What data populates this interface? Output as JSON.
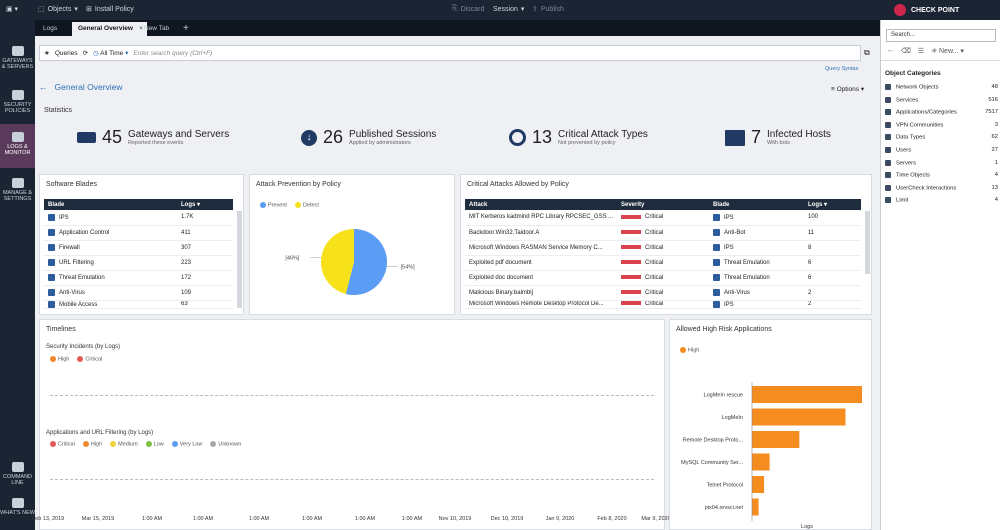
{
  "topbar": {
    "objects": "Objects",
    "install": "Install Policy",
    "discard": "Discard",
    "session": "Session",
    "publish": "Publish",
    "brand": "CHECK POINT"
  },
  "tabs": [
    {
      "label": "Logs"
    },
    {
      "label": "General Overview"
    },
    {
      "label": "New Tab"
    }
  ],
  "nav": [
    {
      "label": "GATEWAYS & SERVERS"
    },
    {
      "label": "SECURITY POLICIES"
    },
    {
      "label": "LOGS & MONITOR"
    },
    {
      "label": "MANAGE & SETTINGS"
    },
    {
      "label": "COMMAND LINE"
    },
    {
      "label": "WHAT'S NEW"
    }
  ],
  "query": {
    "label": "Queries",
    "time": "All Time",
    "placeholder": "Enter search query (Ctrl+F)",
    "syntax": "Query Syntax"
  },
  "page": {
    "title": "General Overview",
    "options": "Options",
    "statistics": "Statistics"
  },
  "stats": [
    {
      "num": "45",
      "title": "Gateways and Servers",
      "sub": "Reported these events"
    },
    {
      "num": "26",
      "title": "Published Sessions",
      "sub": "Applied by administrators"
    },
    {
      "num": "13",
      "title": "Critical Attack Types",
      "sub": "Not prevented by policy"
    },
    {
      "num": "7",
      "title": "Infected Hosts",
      "sub": "With bots"
    }
  ],
  "blades": {
    "title": "Software Blades",
    "headers": [
      "Blade",
      "Logs"
    ],
    "rows": [
      [
        "IPS",
        "1.7K"
      ],
      [
        "Application Control",
        "411"
      ],
      [
        "Firewall",
        "307"
      ],
      [
        "URL Filtering",
        "223"
      ],
      [
        "Threat Emulation",
        "172"
      ],
      [
        "Anti-Virus",
        "109"
      ],
      [
        "Mobile Access",
        "63"
      ]
    ]
  },
  "prevention": {
    "title": "Attack Prevention by Policy",
    "legend": [
      "Prevent",
      "Detect"
    ],
    "colors": [
      "#5b9cf4",
      "#f7e11b"
    ]
  },
  "chart_data": {
    "type": "pie",
    "labels": [
      "Prevent",
      "Detect"
    ],
    "values": [
      54,
      46
    ],
    "data_labels": [
      "[54%]",
      "[46%]"
    ]
  },
  "critical": {
    "title": "Critical Attacks Allowed by Policy",
    "headers": [
      "Attack",
      "Severity",
      "Blade",
      "Logs"
    ],
    "rows": [
      [
        "MIT Kerberos kadmind RPC Library RPCSEC_GSS ...",
        "Critical",
        "IPS",
        "100"
      ],
      [
        "Backdoor.Win32.Taidoor.A",
        "Critical",
        "Anti-Bot",
        "11"
      ],
      [
        "Microsoft Windows RASMAN Service Memory C...",
        "Critical",
        "IPS",
        "8"
      ],
      [
        "Exploited pdf document",
        "Critical",
        "Threat Emulation",
        "6"
      ],
      [
        "Exploited doc document",
        "Critical",
        "Threat Emulation",
        "6"
      ],
      [
        "Malicious Binary.balmblj",
        "Critical",
        "Anti-Virus",
        "2"
      ],
      [
        "Microsoft Windows Remote Desktop Protocol De...",
        "Critical",
        "IPS",
        "2"
      ]
    ]
  },
  "timelines": {
    "title": "Timelines",
    "chart1": "Security Incidents (by Logs)",
    "legend1": [
      "High",
      "Critical"
    ],
    "chart2": "Applications and URL Filtering (by Logs)",
    "legend2": [
      "Critical",
      "High",
      "Medium",
      "Low",
      "Very Low",
      "Unknown"
    ],
    "xticks": [
      "Feb 13, 2019",
      "Mar 15, 2019",
      "1:00 AM",
      "1:00 AM",
      "1:00 AM",
      "1:00 AM",
      "1:00 AM",
      "1:00 AM",
      "Nov 10, 2019",
      "Dec 10, 2019",
      "Jan 9, 2020",
      "Feb 8, 2020",
      "Mar 9, 2020"
    ]
  },
  "highrisk": {
    "title": "Allowed High Risk Applications",
    "legend": "High",
    "xlabel": "Logs",
    "apps": [
      "LogMeIn rescue",
      "LogMeIn",
      "Remote Desktop Proto...",
      "MySQL Community Ser...",
      "Telnet Protocol",
      "pix04.revsci.net"
    ],
    "values": [
      100,
      85,
      43,
      16,
      11,
      6
    ],
    "max": 100
  },
  "right": {
    "search": "Search...",
    "new": "New...",
    "title": "Object Categories",
    "cats": [
      [
        "Network Objects",
        "48"
      ],
      [
        "Services",
        "516"
      ],
      [
        "Applications/Categories",
        "7517"
      ],
      [
        "VPN Communities",
        "3"
      ],
      [
        "Data Types",
        "62"
      ],
      [
        "Users",
        "27"
      ],
      [
        "Servers",
        "1"
      ],
      [
        "Time Objects",
        "4"
      ],
      [
        "UserCheck Interactions",
        "13"
      ],
      [
        "Limit",
        "4"
      ]
    ]
  }
}
